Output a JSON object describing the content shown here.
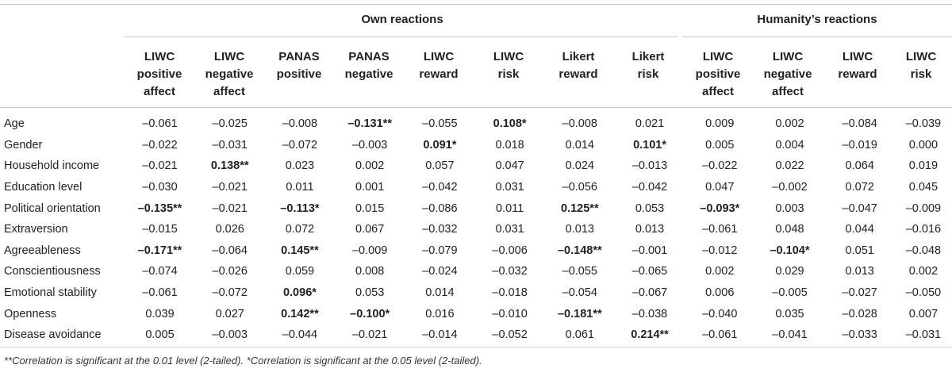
{
  "groups": {
    "own": "Own reactions",
    "humanity": "Humanity’s reactions"
  },
  "columns": [
    [
      "LIWC",
      "positive",
      "affect"
    ],
    [
      "LIWC",
      "negative",
      "affect"
    ],
    [
      "PANAS",
      "positive"
    ],
    [
      "PANAS",
      "negative"
    ],
    [
      "LIWC",
      "reward"
    ],
    [
      "LIWC",
      "risk"
    ],
    [
      "Likert",
      "reward"
    ],
    [
      "Likert",
      "risk"
    ],
    [
      "LIWC",
      "positive",
      "affect"
    ],
    [
      "LIWC",
      "negative",
      "affect"
    ],
    [
      "LIWC",
      "reward"
    ],
    [
      "LIWC",
      "risk"
    ]
  ],
  "rows": [
    {
      "label": "Age",
      "values": [
        "–0.061",
        "–0.025",
        "–0.008",
        "–0.131**",
        "–0.055",
        "0.108*",
        "–0.008",
        "0.021",
        "0.009",
        "0.002",
        "–0.084",
        "–0.039"
      ]
    },
    {
      "label": "Gender",
      "values": [
        "–0.022",
        "–0.031",
        "–0.072",
        "–0.003",
        "0.091*",
        "0.018",
        "0.014",
        "0.101*",
        "0.005",
        "0.004",
        "–0.019",
        "0.000"
      ]
    },
    {
      "label": "Household income",
      "values": [
        "–0.021",
        "0.138**",
        "0.023",
        "0.002",
        "0.057",
        "0.047",
        "0.024",
        "–0.013",
        "–0.022",
        "0.022",
        "0.064",
        "0.019"
      ]
    },
    {
      "label": "Education level",
      "values": [
        "–0.030",
        "–0.021",
        "0.011",
        "0.001",
        "–0.042",
        "0.031",
        "–0.056",
        "–0.042",
        "0.047",
        "–0.002",
        "0.072",
        "0.045"
      ]
    },
    {
      "label": "Political orientation",
      "values": [
        "–0.135**",
        "–0.021",
        "–0.113*",
        "0.015",
        "–0.086",
        "0.011",
        "0.125**",
        "0.053",
        "–0.093*",
        "0.003",
        "–0.047",
        "–0.009"
      ]
    },
    {
      "label": "Extraversion",
      "values": [
        "–0.015",
        "0.026",
        "0.072",
        "0.067",
        "–0.032",
        "0.031",
        "0.013",
        "0.013",
        "–0.061",
        "0.048",
        "0.044",
        "–0.016"
      ]
    },
    {
      "label": "Agreeableness",
      "values": [
        "–0.171**",
        "–0.064",
        "0.145**",
        "–0.009",
        "–0.079",
        "–0.006",
        "–0.148**",
        "–0.001",
        "–0.012",
        "–0.104*",
        "0.051",
        "–0.048"
      ]
    },
    {
      "label": "Conscientiousness",
      "values": [
        "–0.074",
        "–0.026",
        "0.059",
        "0.008",
        "–0.024",
        "–0.032",
        "–0.055",
        "–0.065",
        "0.002",
        "0.029",
        "0.013",
        "0.002"
      ]
    },
    {
      "label": "Emotional stability",
      "values": [
        "–0.061",
        "–0.072",
        "0.096*",
        "0.053",
        "0.014",
        "–0.018",
        "–0.054",
        "–0.067",
        "0.006",
        "–0.005",
        "–0.027",
        "–0.050"
      ]
    },
    {
      "label": "Openness",
      "values": [
        "0.039",
        "0.027",
        "0.142**",
        "–0.100*",
        "0.016",
        "–0.010",
        "–0.181**",
        "–0.038",
        "–0.040",
        "0.035",
        "–0.028",
        "0.007"
      ]
    },
    {
      "label": "Disease avoidance",
      "values": [
        "0.005",
        "–0.003",
        "–0.044",
        "–0.021",
        "–0.014",
        "–0.052",
        "0.061",
        "0.214**",
        "–0.061",
        "–0.041",
        "–0.033",
        "–0.031"
      ]
    }
  ],
  "footnote": "**Correlation is significant at the 0.01 level (2-tailed). *Correlation is significant at the 0.05 level (2-tailed)."
}
